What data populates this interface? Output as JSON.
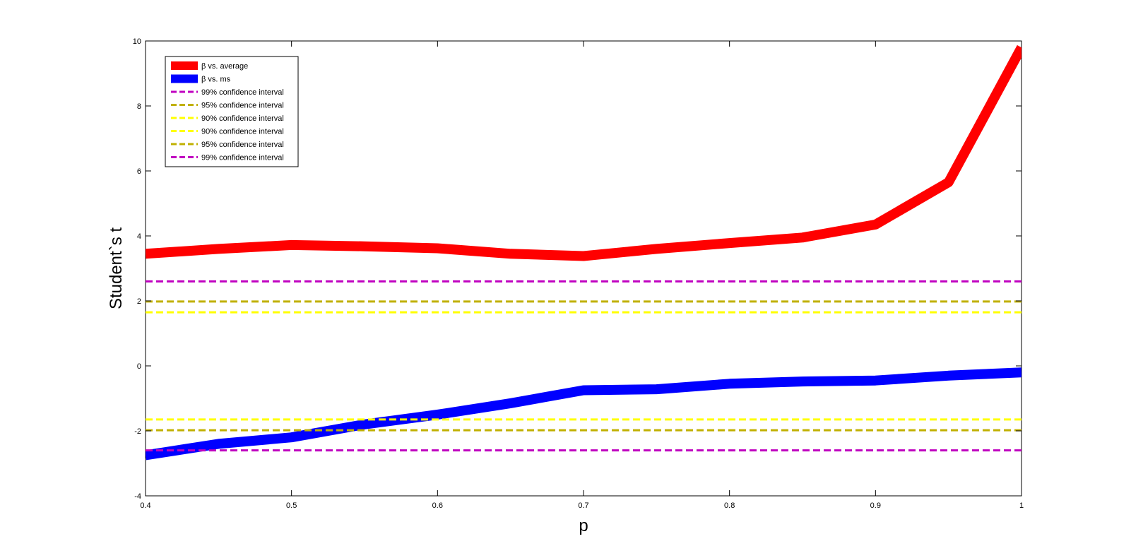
{
  "chart_data": {
    "type": "line",
    "title": "",
    "xlabel": "p",
    "ylabel": "Student`s t",
    "xlim": [
      0.4,
      1.0
    ],
    "ylim": [
      -4,
      10
    ],
    "xticks": [
      0.4,
      0.5,
      0.6,
      0.7,
      0.8,
      0.9,
      1.0
    ],
    "xtick_labels": [
      "0.4",
      "0.5",
      "0.6",
      "0.7",
      "0.8",
      "0.9",
      "1"
    ],
    "yticks": [
      -4,
      -2,
      0,
      2,
      4,
      6,
      8,
      10
    ],
    "ytick_labels": [
      "-4",
      "-2",
      "0",
      "2",
      "4",
      "6",
      "8",
      "10"
    ],
    "grid": false,
    "legend_position": "top-left",
    "series": [
      {
        "name": "β vs. average",
        "color": "#ff0000",
        "style": "solid",
        "x": [
          0.4,
          0.45,
          0.5,
          0.55,
          0.6,
          0.65,
          0.7,
          0.75,
          0.8,
          0.85,
          0.9,
          0.95,
          1.0
        ],
        "y": [
          3.45,
          3.6,
          3.72,
          3.68,
          3.62,
          3.45,
          3.38,
          3.6,
          3.78,
          3.95,
          4.35,
          5.65,
          9.8
        ]
      },
      {
        "name": "β vs. ms",
        "color": "#0000ff",
        "style": "solid",
        "x": [
          0.4,
          0.45,
          0.5,
          0.55,
          0.6,
          0.65,
          0.7,
          0.75,
          0.8,
          0.85,
          0.9,
          0.95,
          1.0
        ],
        "y": [
          -2.75,
          -2.4,
          -2.2,
          -1.8,
          -1.5,
          -1.15,
          -0.75,
          -0.72,
          -0.55,
          -0.48,
          -0.45,
          -0.3,
          -0.2
        ]
      },
      {
        "name": "99% confidence interval",
        "color": "#c000c0",
        "style": "dashed",
        "x": [
          0.4,
          1.0
        ],
        "y": [
          2.6,
          2.6
        ]
      },
      {
        "name": "95% confidence interval",
        "color": "#c0b000",
        "style": "dashed",
        "x": [
          0.4,
          1.0
        ],
        "y": [
          1.98,
          1.98
        ]
      },
      {
        "name": "90% confidence interval",
        "color": "#ffff00",
        "style": "dashed",
        "x": [
          0.4,
          1.0
        ],
        "y": [
          1.65,
          1.65
        ]
      },
      {
        "name": "90% confidence interval",
        "color": "#ffff00",
        "style": "dashed",
        "x": [
          0.4,
          1.0
        ],
        "y": [
          -1.65,
          -1.65
        ]
      },
      {
        "name": "95% confidence interval",
        "color": "#c0b000",
        "style": "dashed",
        "x": [
          0.4,
          1.0
        ],
        "y": [
          -1.98,
          -1.98
        ]
      },
      {
        "name": "99% confidence interval",
        "color": "#c000c0",
        "style": "dashed",
        "x": [
          0.4,
          1.0
        ],
        "y": [
          -2.6,
          -2.6
        ]
      }
    ]
  }
}
